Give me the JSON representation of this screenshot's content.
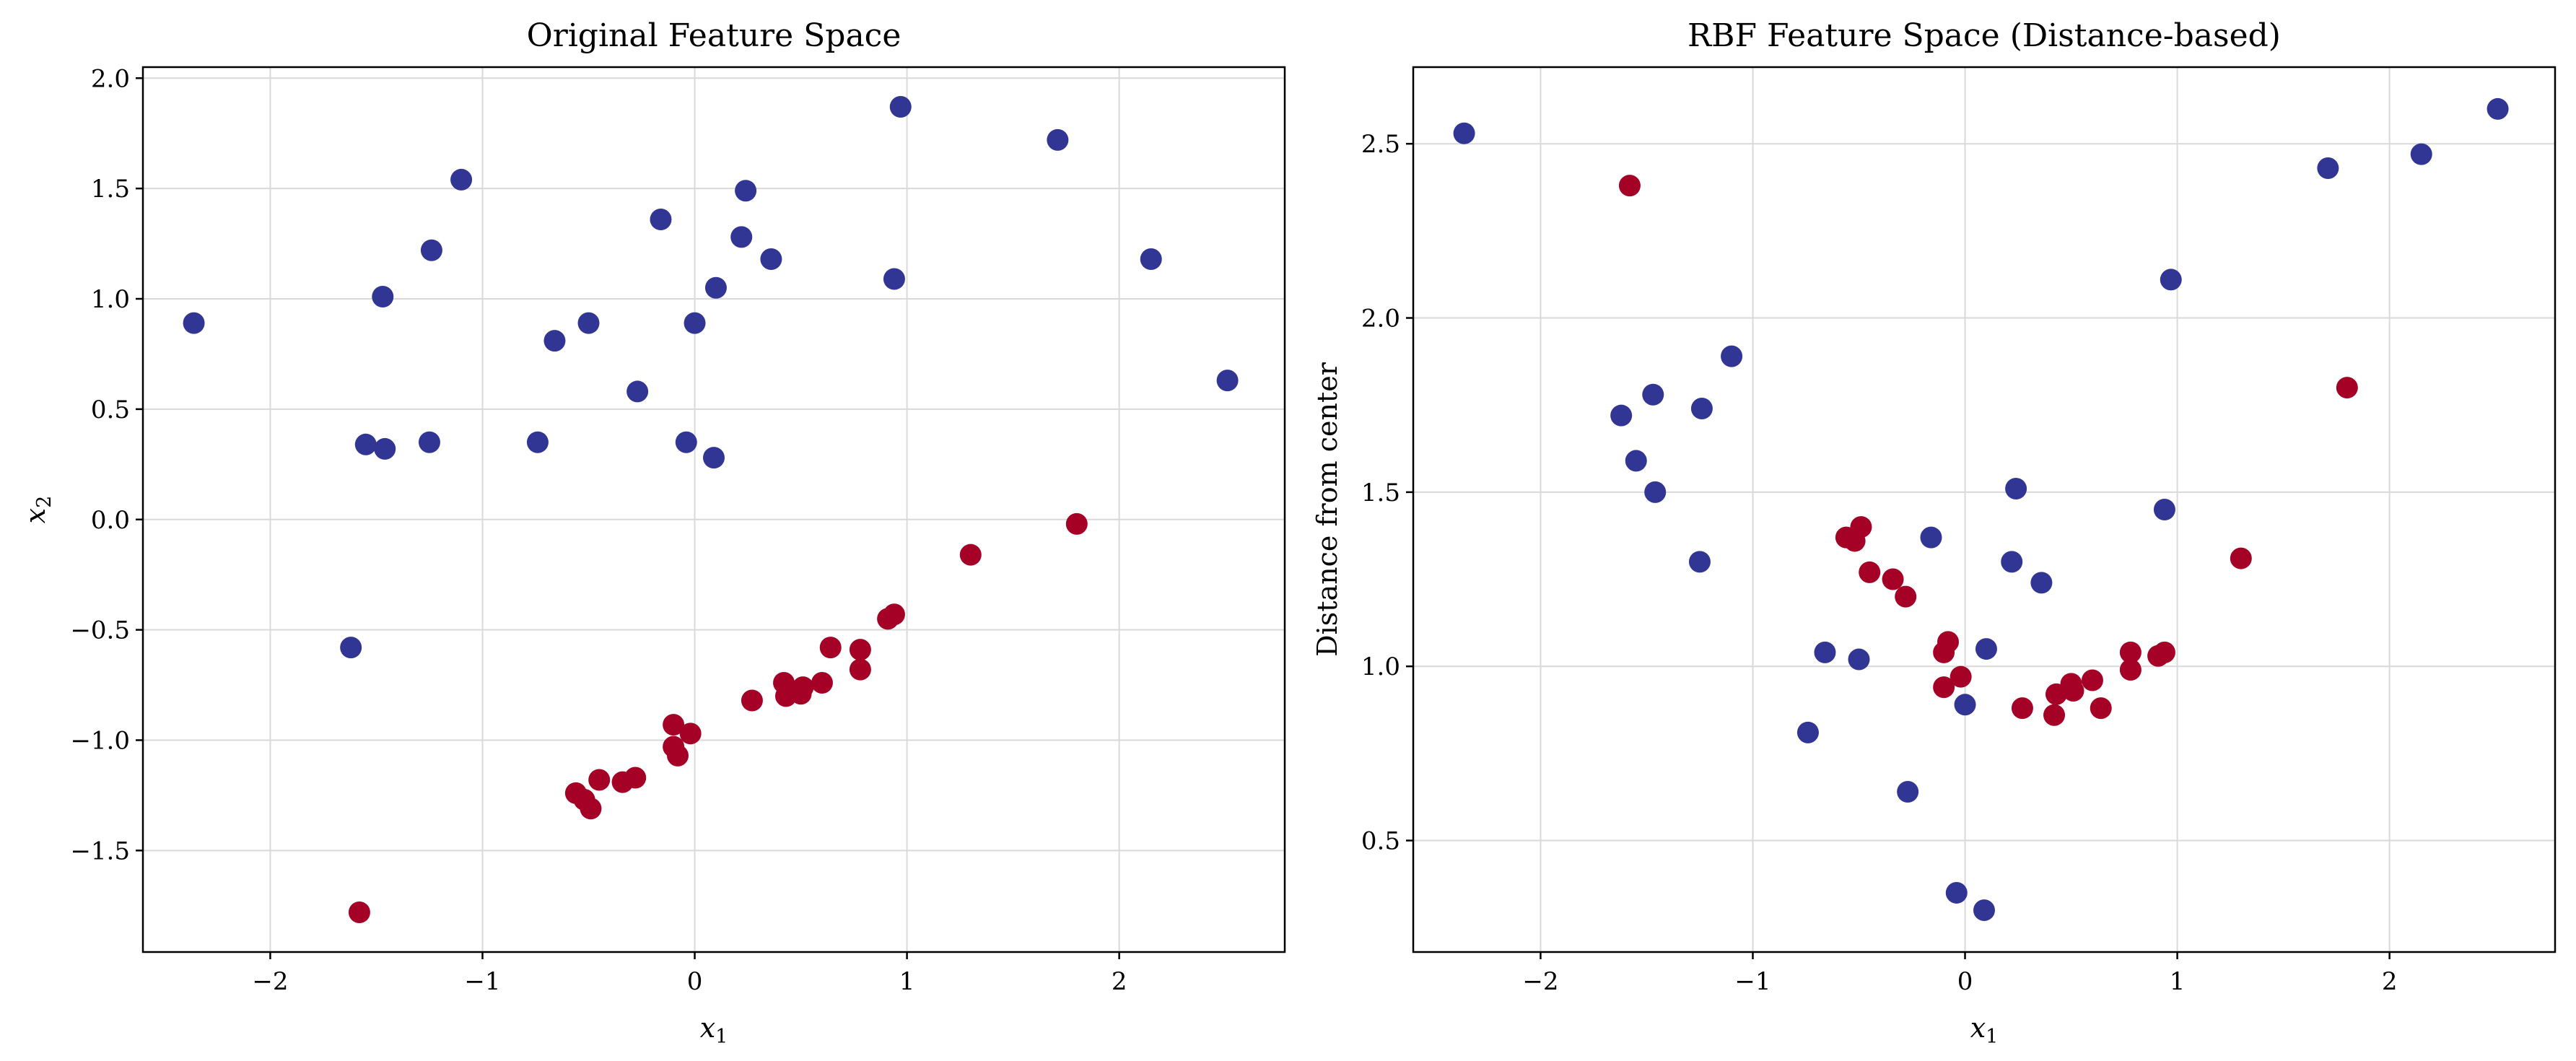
{
  "colors": {
    "class_a": "#313695",
    "class_b": "#a50026"
  },
  "chart_data": [
    {
      "type": "scatter",
      "title": "Original Feature Space",
      "xlabel": "x",
      "xlabel_sub": "1",
      "ylabel": "x",
      "ylabel_sub": "2",
      "xlim": [
        -2.6,
        2.78
      ],
      "ylim": [
        -1.96,
        2.05
      ],
      "xticks": [
        -2,
        -1,
        0,
        1,
        2
      ],
      "xtick_labels": [
        "−2",
        "−1",
        "0",
        "1",
        "2"
      ],
      "yticks": [
        -1.5,
        -1.0,
        -0.5,
        0.0,
        0.5,
        1.0,
        1.5,
        2.0
      ],
      "ytick_labels": [
        "−1.5",
        "−1.0",
        "−0.5",
        "0.0",
        "0.5",
        "1.0",
        "1.5",
        "2.0"
      ],
      "grid": true,
      "series": [
        {
          "color": "#313695",
          "points": [
            [
              -2.36,
              0.89
            ],
            [
              -1.55,
              0.34
            ],
            [
              -1.47,
              1.01
            ],
            [
              -1.46,
              0.32
            ],
            [
              -1.25,
              0.35
            ],
            [
              -1.24,
              1.22
            ],
            [
              -1.1,
              1.54
            ],
            [
              -0.74,
              0.35
            ],
            [
              -0.66,
              0.81
            ],
            [
              -0.5,
              0.89
            ],
            [
              -0.27,
              0.58
            ],
            [
              -0.16,
              1.36
            ],
            [
              -0.04,
              0.35
            ],
            [
              0.0,
              0.89
            ],
            [
              0.09,
              0.28
            ],
            [
              0.1,
              1.05
            ],
            [
              0.22,
              1.28
            ],
            [
              0.24,
              1.49
            ],
            [
              0.36,
              1.18
            ],
            [
              0.94,
              1.09
            ],
            [
              0.97,
              1.87
            ],
            [
              1.71,
              1.72
            ],
            [
              2.15,
              1.18
            ],
            [
              2.51,
              0.63
            ],
            [
              -1.62,
              -0.58
            ]
          ]
        },
        {
          "color": "#a50026",
          "points": [
            [
              -1.58,
              -1.78
            ],
            [
              -0.56,
              -1.24
            ],
            [
              -0.52,
              -1.27
            ],
            [
              -0.49,
              -1.31
            ],
            [
              -0.45,
              -1.18
            ],
            [
              -0.34,
              -1.19
            ],
            [
              -0.28,
              -1.17
            ],
            [
              -0.1,
              -0.93
            ],
            [
              -0.1,
              -1.03
            ],
            [
              -0.08,
              -1.07
            ],
            [
              -0.02,
              -0.97
            ],
            [
              0.27,
              -0.82
            ],
            [
              0.42,
              -0.74
            ],
            [
              0.43,
              -0.8
            ],
            [
              0.5,
              -0.79
            ],
            [
              0.51,
              -0.76
            ],
            [
              0.6,
              -0.74
            ],
            [
              0.64,
              -0.58
            ],
            [
              0.78,
              -0.59
            ],
            [
              0.78,
              -0.68
            ],
            [
              0.91,
              -0.45
            ],
            [
              0.94,
              -0.43
            ],
            [
              1.3,
              -0.16
            ],
            [
              1.8,
              -0.02
            ]
          ]
        }
      ]
    },
    {
      "type": "scatter",
      "title": "RBF Feature Space (Distance-based)",
      "xlabel": "x",
      "xlabel_sub": "1",
      "ylabel": "Distance from center",
      "ylabel_sub": "",
      "xlim": [
        -2.6,
        2.78
      ],
      "ylim": [
        0.18,
        2.72
      ],
      "xticks": [
        -2,
        -1,
        0,
        1,
        2
      ],
      "xtick_labels": [
        "−2",
        "−1",
        "0",
        "1",
        "2"
      ],
      "yticks": [
        0.5,
        1.0,
        1.5,
        2.0,
        2.5
      ],
      "ytick_labels": [
        "0.5",
        "1.0",
        "1.5",
        "2.0",
        "2.5"
      ],
      "grid": true,
      "series": [
        {
          "color": "#313695",
          "points": [
            [
              -2.36,
              2.53
            ],
            [
              -1.62,
              1.72
            ],
            [
              -1.55,
              1.59
            ],
            [
              -1.47,
              1.78
            ],
            [
              -1.46,
              1.5
            ],
            [
              -1.25,
              1.3
            ],
            [
              -1.24,
              1.74
            ],
            [
              -1.1,
              1.89
            ],
            [
              -0.74,
              0.81
            ],
            [
              -0.66,
              1.04
            ],
            [
              -0.5,
              1.02
            ],
            [
              -0.27,
              0.64
            ],
            [
              -0.16,
              1.37
            ],
            [
              -0.04,
              0.35
            ],
            [
              0.0,
              0.89
            ],
            [
              0.09,
              0.3
            ],
            [
              0.1,
              1.05
            ],
            [
              0.22,
              1.3
            ],
            [
              0.24,
              1.51
            ],
            [
              0.36,
              1.24
            ],
            [
              0.94,
              1.45
            ],
            [
              0.97,
              2.11
            ],
            [
              1.71,
              2.43
            ],
            [
              2.15,
              2.47
            ],
            [
              2.51,
              2.6
            ]
          ]
        },
        {
          "color": "#a50026",
          "points": [
            [
              -1.58,
              2.38
            ],
            [
              -0.56,
              1.37
            ],
            [
              -0.52,
              1.36
            ],
            [
              -0.49,
              1.4
            ],
            [
              -0.45,
              1.27
            ],
            [
              -0.34,
              1.25
            ],
            [
              -0.28,
              1.2
            ],
            [
              -0.1,
              1.04
            ],
            [
              -0.08,
              1.07
            ],
            [
              -0.1,
              0.94
            ],
            [
              -0.02,
              0.97
            ],
            [
              0.27,
              0.88
            ],
            [
              0.42,
              0.86
            ],
            [
              0.43,
              0.92
            ],
            [
              0.5,
              0.95
            ],
            [
              0.51,
              0.93
            ],
            [
              0.6,
              0.96
            ],
            [
              0.64,
              0.88
            ],
            [
              0.78,
              1.04
            ],
            [
              0.78,
              0.99
            ],
            [
              0.91,
              1.03
            ],
            [
              0.94,
              1.04
            ],
            [
              1.3,
              1.31
            ],
            [
              1.8,
              1.8
            ]
          ]
        }
      ]
    }
  ]
}
